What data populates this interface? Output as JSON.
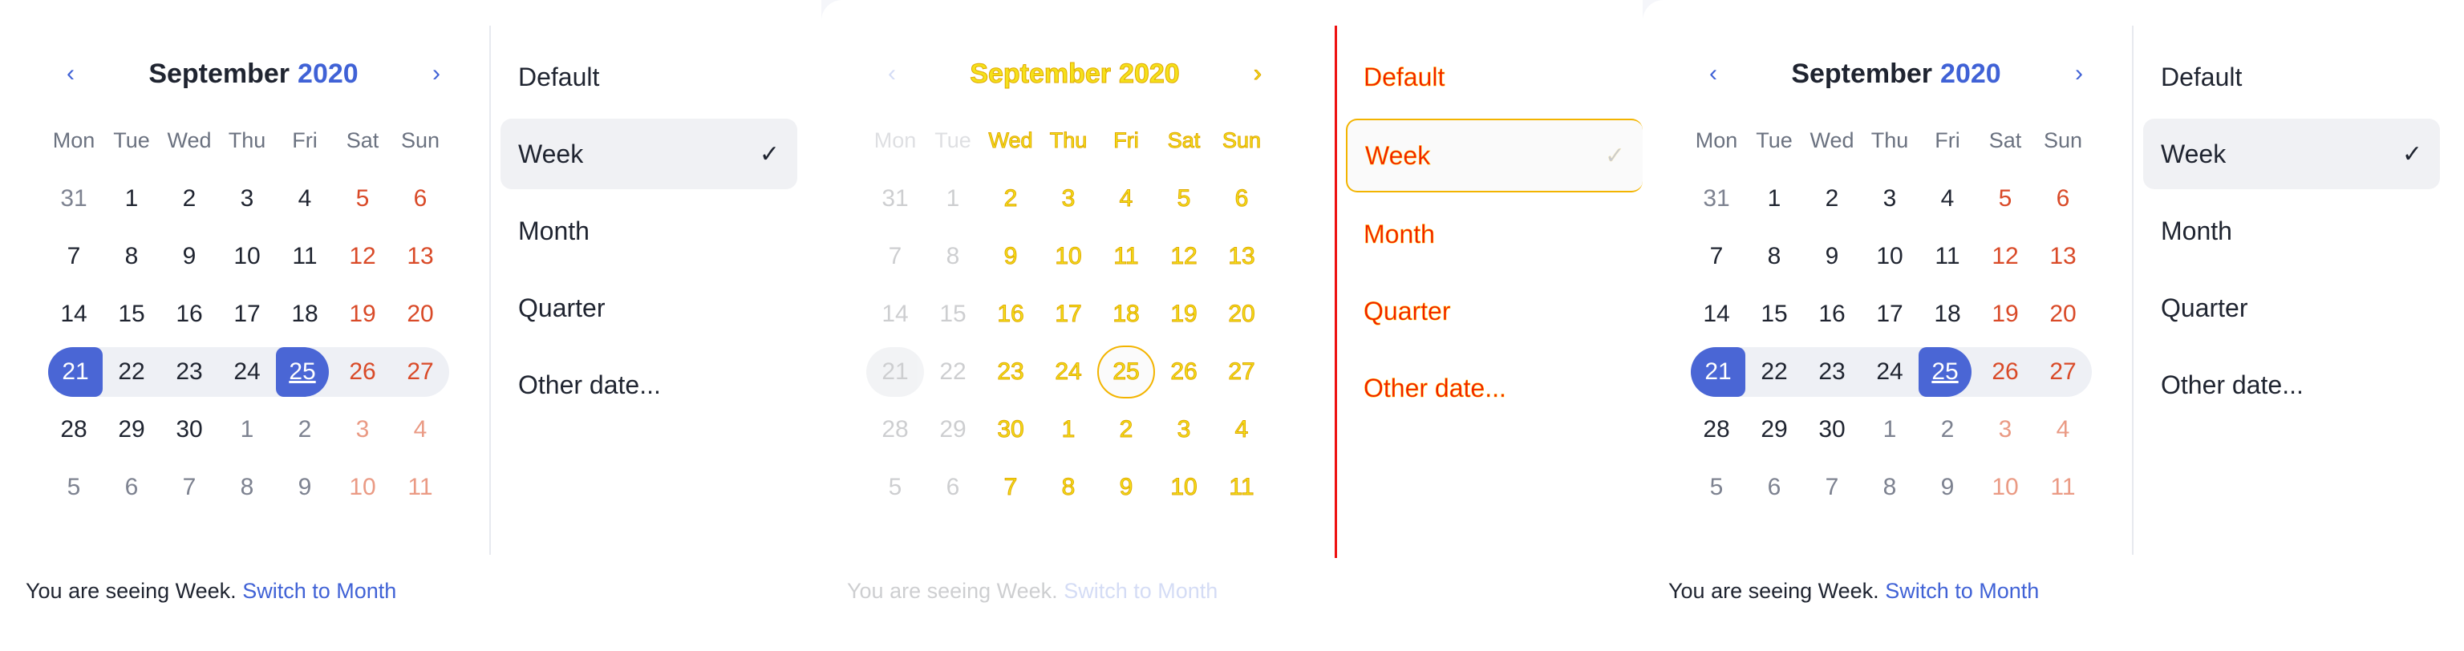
{
  "calendar": {
    "month": "September",
    "year": "2020",
    "prev_icon": "chevron-left-icon",
    "next_icon": "chevron-right-icon",
    "weekdays": [
      "Mon",
      "Tue",
      "Wed",
      "Thu",
      "Fri",
      "Sat",
      "Sun"
    ],
    "weeks": [
      [
        "31",
        "1",
        "2",
        "3",
        "4",
        "5",
        "6"
      ],
      [
        "7",
        "8",
        "9",
        "10",
        "11",
        "12",
        "13"
      ],
      [
        "14",
        "15",
        "16",
        "17",
        "18",
        "19",
        "20"
      ],
      [
        "21",
        "22",
        "23",
        "24",
        "25",
        "26",
        "27"
      ],
      [
        "28",
        "29",
        "30",
        "1",
        "2",
        "3",
        "4"
      ],
      [
        "5",
        "6",
        "7",
        "8",
        "9",
        "10",
        "11"
      ]
    ],
    "selected_range": [
      "21",
      "25"
    ]
  },
  "menu": {
    "items": [
      "Default",
      "Week",
      "Month",
      "Quarter",
      "Other date..."
    ],
    "active": "Week",
    "check_icon": "checkmark-icon"
  },
  "footer": {
    "text": "You are seeing Week.",
    "link": "Switch to Month"
  },
  "colors": {
    "accent": "#4062d6",
    "selection": "#4a66d5",
    "weekend": "#d94a28",
    "diff_yellow": "#f5e11a",
    "diff_red": "#f21c00"
  }
}
